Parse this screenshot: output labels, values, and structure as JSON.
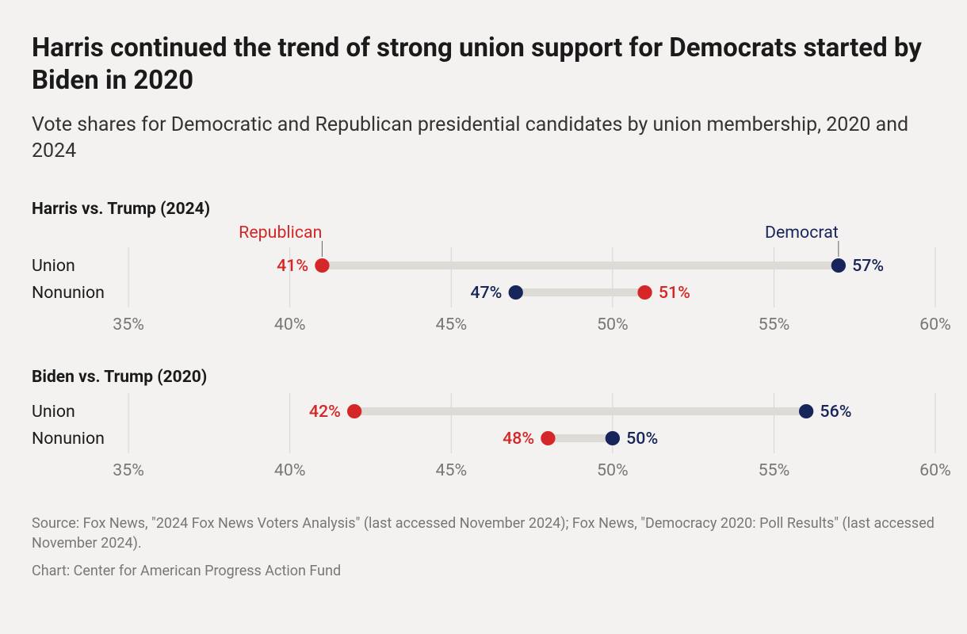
{
  "title": "Harris continued the trend of strong union support for Democrats started by Biden in 2020",
  "subtitle": "Vote shares for Democratic and Republican presidential candidates by union membership, 2020 and 2024",
  "colors": {
    "republican": "#d62728",
    "democrat": "#17255a",
    "background": "#f4f2f0",
    "gridline": "#d6d3cf",
    "connector": "#dedbd7",
    "text_muted": "#777777",
    "text_dark": "#1a1a1a"
  },
  "typography": {
    "title_fontsize": 33,
    "subtitle_fontsize": 25,
    "label_fontsize": 21,
    "footer_fontsize": 18,
    "font_family": "system-ui"
  },
  "chart": {
    "type": "dot-dumbbell",
    "x_domain": [
      35,
      60
    ],
    "x_ticks": [
      35,
      40,
      45,
      50,
      55,
      60
    ],
    "x_tick_suffix": "%",
    "dot_radius": 9,
    "connector_width": 10,
    "panels": [
      {
        "title": "Harris vs. Trump (2024)",
        "show_party_labels": true,
        "labels": {
          "republican": "Republican",
          "democrat": "Democrat"
        },
        "rows": [
          {
            "label": "Union",
            "republican": 41,
            "democrat": 57,
            "rep_label_side": "left",
            "dem_label_side": "right"
          },
          {
            "label": "Nonunion",
            "republican": 51,
            "democrat": 47,
            "rep_label_side": "right",
            "dem_label_side": "left"
          }
        ]
      },
      {
        "title": "Biden vs. Trump (2020)",
        "show_party_labels": false,
        "rows": [
          {
            "label": "Union",
            "republican": 42,
            "democrat": 56,
            "rep_label_side": "left",
            "dem_label_side": "right"
          },
          {
            "label": "Nonunion",
            "republican": 48,
            "democrat": 50,
            "rep_label_side": "left",
            "dem_label_side": "right"
          }
        ]
      }
    ]
  },
  "footer": {
    "source": "Source: Fox News, \"2024 Fox News Voters Analysis\" (last accessed November 2024); Fox News, \"Democracy 2020: Poll Results\" (last accessed November 2024).",
    "credit": "Chart: Center for American Progress Action Fund"
  }
}
